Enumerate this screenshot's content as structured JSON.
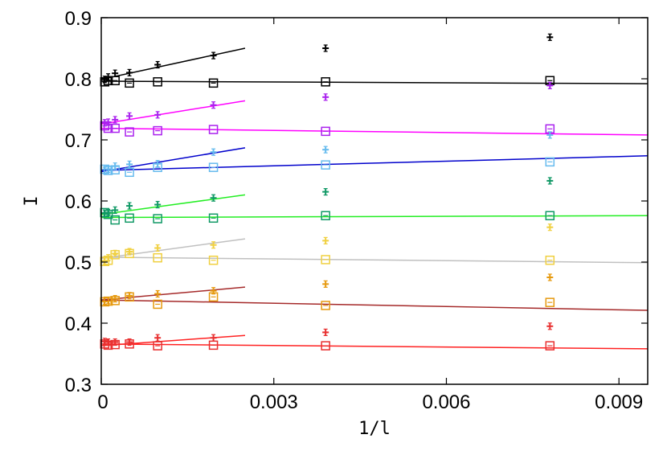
{
  "chart_data": {
    "type": "scatter",
    "xlabel": "1/l",
    "ylabel": "I",
    "xlim": [
      0,
      0.0095
    ],
    "ylim": [
      0.3,
      0.9
    ],
    "grid": false,
    "legend": "none",
    "x_ticks": [
      {
        "value": 0,
        "label": "0"
      },
      {
        "value": 0.003,
        "label": "0.003"
      },
      {
        "value": 0.006,
        "label": "0.006"
      },
      {
        "value": 0.009,
        "label": "0.009"
      }
    ],
    "y_ticks": [
      {
        "value": 0.3,
        "label": "0.3"
      },
      {
        "value": 0.4,
        "label": "0.4"
      },
      {
        "value": 0.5,
        "label": "0.5"
      },
      {
        "value": 0.6,
        "label": "0.6"
      },
      {
        "value": 0.7,
        "label": "0.7"
      },
      {
        "value": 0.8,
        "label": "0.8"
      },
      {
        "value": 0.9,
        "label": "0.9"
      }
    ],
    "series": [
      {
        "marker": "plus",
        "color": "#000000",
        "points": [
          [
            6e-05,
            0.799
          ],
          [
            0.00012,
            0.803
          ],
          [
            0.00024,
            0.809
          ],
          [
            0.00049,
            0.81
          ],
          [
            0.00098,
            0.823
          ],
          [
            0.00195,
            0.838
          ],
          [
            0.0039,
            0.85
          ],
          [
            0.0078,
            0.868
          ]
        ],
        "fit": {
          "x": [
            0,
            0.0025
          ],
          "y": [
            0.799,
            0.85
          ],
          "color": "#000000"
        }
      },
      {
        "marker": "square",
        "color": "#000000",
        "points": [
          [
            6e-05,
            0.795
          ],
          [
            0.00012,
            0.797
          ],
          [
            0.00024,
            0.797
          ],
          [
            0.00049,
            0.793
          ],
          [
            0.00098,
            0.795
          ],
          [
            0.00195,
            0.793
          ],
          [
            0.0039,
            0.795
          ],
          [
            0.0078,
            0.797
          ]
        ],
        "fit": {
          "x": [
            0,
            0.0095
          ],
          "y": [
            0.796,
            0.792
          ],
          "color": "#000000"
        }
      },
      {
        "marker": "plus",
        "color": "#aa22ee",
        "points": [
          [
            6e-05,
            0.728
          ],
          [
            0.00012,
            0.729
          ],
          [
            0.00024,
            0.733
          ],
          [
            0.00049,
            0.739
          ],
          [
            0.00098,
            0.741
          ],
          [
            0.00195,
            0.757
          ],
          [
            0.0039,
            0.77
          ],
          [
            0.0078,
            0.789
          ]
        ],
        "fit": {
          "x": [
            0,
            0.0025
          ],
          "y": [
            0.726,
            0.764
          ],
          "color": "#ff00ff"
        }
      },
      {
        "marker": "square",
        "color": "#aa22ee",
        "points": [
          [
            6e-05,
            0.723
          ],
          [
            0.00012,
            0.719
          ],
          [
            0.00024,
            0.719
          ],
          [
            0.00049,
            0.713
          ],
          [
            0.00098,
            0.715
          ],
          [
            0.00195,
            0.717
          ],
          [
            0.0039,
            0.714
          ],
          [
            0.0078,
            0.718
          ]
        ],
        "fit": {
          "x": [
            0,
            0.0095
          ],
          "y": [
            0.719,
            0.708
          ],
          "color": "#ff00ff"
        }
      },
      {
        "marker": "plus",
        "color": "#66bbee",
        "points": [
          [
            6e-05,
            0.65
          ],
          [
            0.00012,
            0.652
          ],
          [
            0.00024,
            0.657
          ],
          [
            0.00049,
            0.66
          ],
          [
            0.00098,
            0.661
          ],
          [
            0.00195,
            0.68
          ],
          [
            0.0039,
            0.684
          ],
          [
            0.0078,
            0.708
          ]
        ],
        "fit": {
          "x": [
            0,
            0.0025
          ],
          "y": [
            0.648,
            0.687
          ],
          "color": "#0000cc"
        }
      },
      {
        "marker": "square",
        "color": "#66bbee",
        "points": [
          [
            6e-05,
            0.652
          ],
          [
            0.00012,
            0.65
          ],
          [
            0.00024,
            0.651
          ],
          [
            0.00049,
            0.647
          ],
          [
            0.00098,
            0.655
          ],
          [
            0.00195,
            0.655
          ],
          [
            0.0039,
            0.659
          ],
          [
            0.0078,
            0.664
          ]
        ],
        "fit": {
          "x": [
            0,
            0.0095
          ],
          "y": [
            0.65,
            0.674
          ],
          "color": "#0000cc"
        }
      },
      {
        "marker": "plus",
        "color": "#119966",
        "points": [
          [
            6e-05,
            0.58
          ],
          [
            0.00012,
            0.581
          ],
          [
            0.00024,
            0.585
          ],
          [
            0.00049,
            0.592
          ],
          [
            0.00098,
            0.594
          ],
          [
            0.00195,
            0.605
          ],
          [
            0.0039,
            0.615
          ],
          [
            0.0078,
            0.633
          ]
        ],
        "fit": {
          "x": [
            0,
            0.0025
          ],
          "y": [
            0.578,
            0.61
          ],
          "color": "#22ee22"
        }
      },
      {
        "marker": "square",
        "color": "#119966",
        "points": [
          [
            6e-05,
            0.581
          ],
          [
            0.00012,
            0.578
          ],
          [
            0.00024,
            0.569
          ],
          [
            0.00049,
            0.572
          ],
          [
            0.00098,
            0.571
          ],
          [
            0.00195,
            0.572
          ],
          [
            0.0039,
            0.576
          ],
          [
            0.0078,
            0.576
          ]
        ],
        "fit": {
          "x": [
            0,
            0.0095
          ],
          "y": [
            0.573,
            0.576
          ],
          "color": "#22ee22"
        }
      },
      {
        "marker": "plus",
        "color": "#f0d040",
        "points": [
          [
            6e-05,
            0.502
          ],
          [
            0.00012,
            0.507
          ],
          [
            0.00024,
            0.514
          ],
          [
            0.00049,
            0.517
          ],
          [
            0.00098,
            0.523
          ],
          [
            0.00195,
            0.528
          ],
          [
            0.0039,
            0.535
          ],
          [
            0.0078,
            0.557
          ]
        ],
        "fit": {
          "x": [
            0,
            0.0025
          ],
          "y": [
            0.506,
            0.538
          ],
          "color": "#c0c0c0"
        }
      },
      {
        "marker": "square",
        "color": "#f0d040",
        "points": [
          [
            6e-05,
            0.501
          ],
          [
            0.00012,
            0.503
          ],
          [
            0.00024,
            0.512
          ],
          [
            0.00049,
            0.514
          ],
          [
            0.00098,
            0.507
          ],
          [
            0.00195,
            0.503
          ],
          [
            0.0039,
            0.504
          ],
          [
            0.0078,
            0.503
          ]
        ],
        "fit": {
          "x": [
            0,
            0.0095
          ],
          "y": [
            0.508,
            0.499
          ],
          "color": "#c0c0c0"
        }
      },
      {
        "marker": "plus",
        "color": "#e69a10",
        "points": [
          [
            6e-05,
            0.436
          ],
          [
            0.00012,
            0.437
          ],
          [
            0.00024,
            0.44
          ],
          [
            0.00049,
            0.445
          ],
          [
            0.00098,
            0.448
          ],
          [
            0.00195,
            0.453
          ],
          [
            0.0039,
            0.464
          ],
          [
            0.0078,
            0.475
          ]
        ],
        "fit": {
          "x": [
            0,
            0.0025
          ],
          "y": [
            0.438,
            0.459
          ],
          "color": "#a52a2a"
        }
      },
      {
        "marker": "square",
        "color": "#e69a10",
        "points": [
          [
            6e-05,
            0.435
          ],
          [
            0.00012,
            0.436
          ],
          [
            0.00024,
            0.437
          ],
          [
            0.00049,
            0.443
          ],
          [
            0.00098,
            0.431
          ],
          [
            0.00195,
            0.443
          ],
          [
            0.0039,
            0.429
          ],
          [
            0.0078,
            0.434
          ]
        ],
        "fit": {
          "x": [
            0,
            0.0095
          ],
          "y": [
            0.438,
            0.421
          ],
          "color": "#a52a2a"
        }
      },
      {
        "marker": "plus",
        "color": "#e83030",
        "points": [
          [
            6e-05,
            0.37
          ],
          [
            0.00012,
            0.369
          ],
          [
            0.00024,
            0.369
          ],
          [
            0.00049,
            0.369
          ],
          [
            0.00098,
            0.376
          ],
          [
            0.00195,
            0.376
          ],
          [
            0.0039,
            0.385
          ],
          [
            0.0078,
            0.395
          ]
        ],
        "fit": {
          "x": [
            0,
            0.0025
          ],
          "y": [
            0.363,
            0.38
          ],
          "color": "#ff2222"
        }
      },
      {
        "marker": "square",
        "color": "#e83030",
        "points": [
          [
            6e-05,
            0.366
          ],
          [
            0.00012,
            0.364
          ],
          [
            0.00024,
            0.365
          ],
          [
            0.00049,
            0.366
          ],
          [
            0.00098,
            0.363
          ],
          [
            0.00195,
            0.364
          ],
          [
            0.0039,
            0.363
          ],
          [
            0.0078,
            0.363
          ]
        ],
        "fit": {
          "x": [
            0,
            0.0095
          ],
          "y": [
            0.366,
            0.358
          ],
          "color": "#ff2222"
        }
      }
    ]
  }
}
